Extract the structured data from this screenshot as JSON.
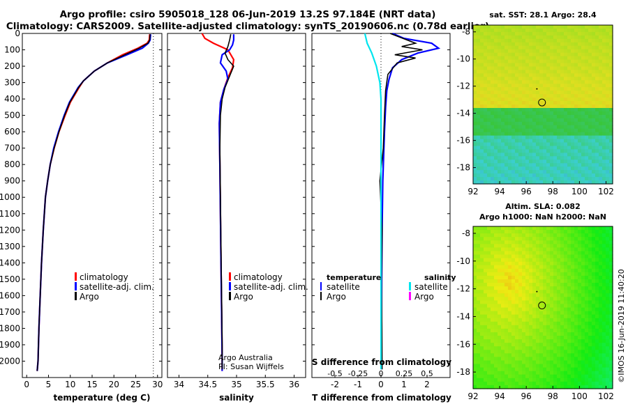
{
  "header": {
    "line1": "Argo profile: csiro 5905018_128 06-Jun-2019 13.2S 97.184E (NRT data)",
    "line2": "Climatology: CARS2009. Satellite-adjusted climatology: synTS_20190606.nc (0.78d earlier)"
  },
  "colors": {
    "climatology": "#ff0000",
    "satellite": "#0000ff",
    "argo": "#000000",
    "cyan": "#00e5ee",
    "magenta": "#ff00ff"
  },
  "chart_data": [
    {
      "type": "line",
      "name": "temperature",
      "xlabel": "temperature (deg C)",
      "xlim": [
        -1,
        31
      ],
      "ylim": [
        2100,
        0
      ],
      "xticks": [
        0,
        5,
        10,
        15,
        20,
        25,
        30
      ],
      "yticks": [
        0,
        100,
        200,
        300,
        400,
        500,
        600,
        700,
        800,
        900,
        1000,
        1100,
        1200,
        1300,
        1400,
        1500,
        1600,
        1700,
        1800,
        1900,
        2000
      ],
      "legend": [
        "climatology",
        "satellite-adj. clim.",
        "Argo"
      ],
      "series": [
        {
          "name": "climatology",
          "color": "climatology",
          "x": [
            28.2,
            28.1,
            27.6,
            25.5,
            22,
            18.5,
            15.5,
            13,
            12,
            10,
            8.8,
            7.4,
            6.3,
            5.4,
            4.8,
            4.3,
            3.8,
            3.4,
            3.1,
            2.8,
            2.6,
            2.4
          ],
          "y": [
            5,
            40,
            60,
            90,
            130,
            180,
            230,
            290,
            330,
            420,
            500,
            600,
            700,
            800,
            900,
            1000,
            1200,
            1400,
            1600,
            1800,
            2000,
            2060
          ]
        },
        {
          "name": "satellite-adj. clim.",
          "color": "satellite",
          "x": [
            28.4,
            28.3,
            27.9,
            26.5,
            23,
            18.5,
            15.5,
            13,
            11.8,
            9.8,
            8.6,
            7.3,
            6.2,
            5.4,
            4.8,
            4.3,
            3.8,
            3.4,
            3.1,
            2.8,
            2.6,
            2.4
          ],
          "y": [
            5,
            40,
            60,
            90,
            130,
            180,
            230,
            290,
            330,
            420,
            500,
            600,
            700,
            800,
            900,
            1000,
            1200,
            1400,
            1600,
            1800,
            2000,
            2060
          ]
        },
        {
          "name": "Argo",
          "color": "argo",
          "x": [
            28.3,
            28.2,
            27.8,
            25.8,
            22.5,
            18.5,
            15.5,
            13,
            11.9,
            9.9,
            8.7,
            7.4,
            6.3,
            5.4,
            4.8,
            4.3,
            3.8,
            3.4,
            3.1,
            2.8,
            2.6,
            2.4
          ],
          "y": [
            5,
            40,
            60,
            90,
            130,
            180,
            230,
            290,
            330,
            420,
            500,
            600,
            700,
            800,
            900,
            1000,
            1200,
            1400,
            1600,
            1800,
            2000,
            2060
          ]
        }
      ]
    },
    {
      "type": "line",
      "name": "salinity",
      "xlabel": "salinity",
      "xlim": [
        33.8,
        36.2
      ],
      "ylim": [
        2100,
        0
      ],
      "xticks": [
        34,
        34.5,
        35,
        35.5,
        36
      ],
      "legend": [
        "climatology",
        "satellite-adj. clim.",
        "Argo"
      ],
      "series": [
        {
          "name": "climatology",
          "color": "climatology",
          "x": [
            34.4,
            34.45,
            34.6,
            34.85,
            34.95,
            34.93,
            34.85,
            34.78,
            34.72,
            34.7,
            34.71,
            34.72,
            34.73,
            34.74,
            34.75,
            34.75
          ],
          "y": [
            0,
            30,
            60,
            100,
            160,
            210,
            270,
            340,
            420,
            550,
            800,
            1100,
            1400,
            1700,
            2000,
            2060
          ]
        },
        {
          "name": "satellite-adj. clim.",
          "color": "satellite",
          "x": [
            34.95,
            34.95,
            34.93,
            34.88,
            34.75,
            34.72,
            34.82,
            34.85,
            34.78,
            34.72,
            34.7,
            34.71,
            34.72,
            34.73,
            34.74,
            34.75,
            34.75
          ],
          "y": [
            5,
            40,
            70,
            100,
            130,
            180,
            230,
            280,
            340,
            420,
            550,
            800,
            1100,
            1400,
            1700,
            2000,
            2060
          ]
        },
        {
          "name": "Argo",
          "color": "argo",
          "x": [
            34.9,
            34.88,
            34.85,
            34.8,
            34.85,
            34.95,
            34.88,
            34.8,
            34.75,
            34.72,
            34.71,
            34.72,
            34.73,
            34.74,
            34.75,
            34.75
          ],
          "y": [
            5,
            40,
            80,
            120,
            160,
            200,
            260,
            330,
            400,
            500,
            700,
            1000,
            1300,
            1600,
            1900,
            2050
          ]
        }
      ],
      "note_line1": "Argo Australia",
      "note_line2": "PI: Susan Wijffels"
    },
    {
      "type": "line",
      "name": "difference",
      "xlabel": "T difference from climatology",
      "xlabel_top": "S difference from climatology",
      "xlim": [
        -3,
        3
      ],
      "ylim": [
        2100,
        0
      ],
      "xticks": [
        -2,
        -1,
        0,
        1,
        2
      ],
      "top_ticks": [
        "-0.5",
        "-0.25",
        "0",
        "0.25",
        "0.5"
      ],
      "legend_left_title": "temperature",
      "legend_right_title": "salinity",
      "legend_left": [
        "satellite",
        "Argo"
      ],
      "legend_right": [
        "satellite",
        "Argo"
      ],
      "series": [
        {
          "name": "T satellite",
          "color": "satellite",
          "x": [
            0.5,
            1,
            2.2,
            2.5,
            1.6,
            0.9,
            0.5,
            0.35,
            0.25,
            0.2,
            0.15,
            0.08,
            0.05,
            0.03,
            0.02,
            0.02
          ],
          "y": [
            0,
            30,
            60,
            90,
            120,
            160,
            210,
            280,
            350,
            450,
            600,
            900,
            1200,
            1500,
            1800,
            2050
          ]
        },
        {
          "name": "T Argo",
          "color": "argo",
          "x": [
            0.4,
            1.5,
            0.9,
            1.8,
            0.6,
            1.5,
            0.7,
            0.3,
            0.2,
            0.15,
            0.1,
            -0.05,
            0.05,
            0.02,
            0.04,
            0.05
          ],
          "y": [
            0,
            60,
            80,
            100,
            130,
            150,
            180,
            250,
            350,
            500,
            700,
            900,
            1200,
            1500,
            1800,
            2050
          ]
        },
        {
          "name": "S satellite",
          "color": "cyan",
          "x": [
            -0.7,
            -0.6,
            -0.4,
            -0.2,
            -0.05,
            0.0,
            0.0,
            0.0,
            0.0,
            0.0,
            0.0
          ],
          "y": [
            0,
            60,
            120,
            200,
            300,
            400,
            600,
            900,
            1300,
            1700,
            2050
          ]
        }
      ]
    },
    {
      "type": "heatmap",
      "name": "sst_map",
      "title": "sat. SST: 28.1 Argo: 28.4",
      "xticks": [
        92,
        94,
        96,
        98,
        100,
        102
      ],
      "yticks": [
        -8,
        -10,
        -12,
        -14,
        -16,
        -18
      ],
      "xlim": [
        92,
        102.5
      ],
      "ylim": [
        -19.2,
        -7.5
      ],
      "marker": {
        "lon": 97.184,
        "lat": -13.2
      },
      "track_point": {
        "lon": 96.8,
        "lat": -12.2
      }
    },
    {
      "type": "heatmap",
      "name": "sla_map",
      "title_line1": "Altim. SLA: 0.082",
      "title_line2": "Argo h1000: NaN h2000: NaN",
      "xticks": [
        92,
        94,
        96,
        98,
        100,
        102
      ],
      "yticks": [
        -8,
        -10,
        -12,
        -14,
        -16,
        -18
      ],
      "xlim": [
        92,
        102.5
      ],
      "ylim": [
        -19.2,
        -7.5
      ],
      "marker": {
        "lon": 97.184,
        "lat": -13.2
      },
      "track_point": {
        "lon": 96.8,
        "lat": -12.2
      }
    }
  ],
  "footer": {
    "stamp": "©IMOS 16-Jun-2019 11:40:20"
  }
}
